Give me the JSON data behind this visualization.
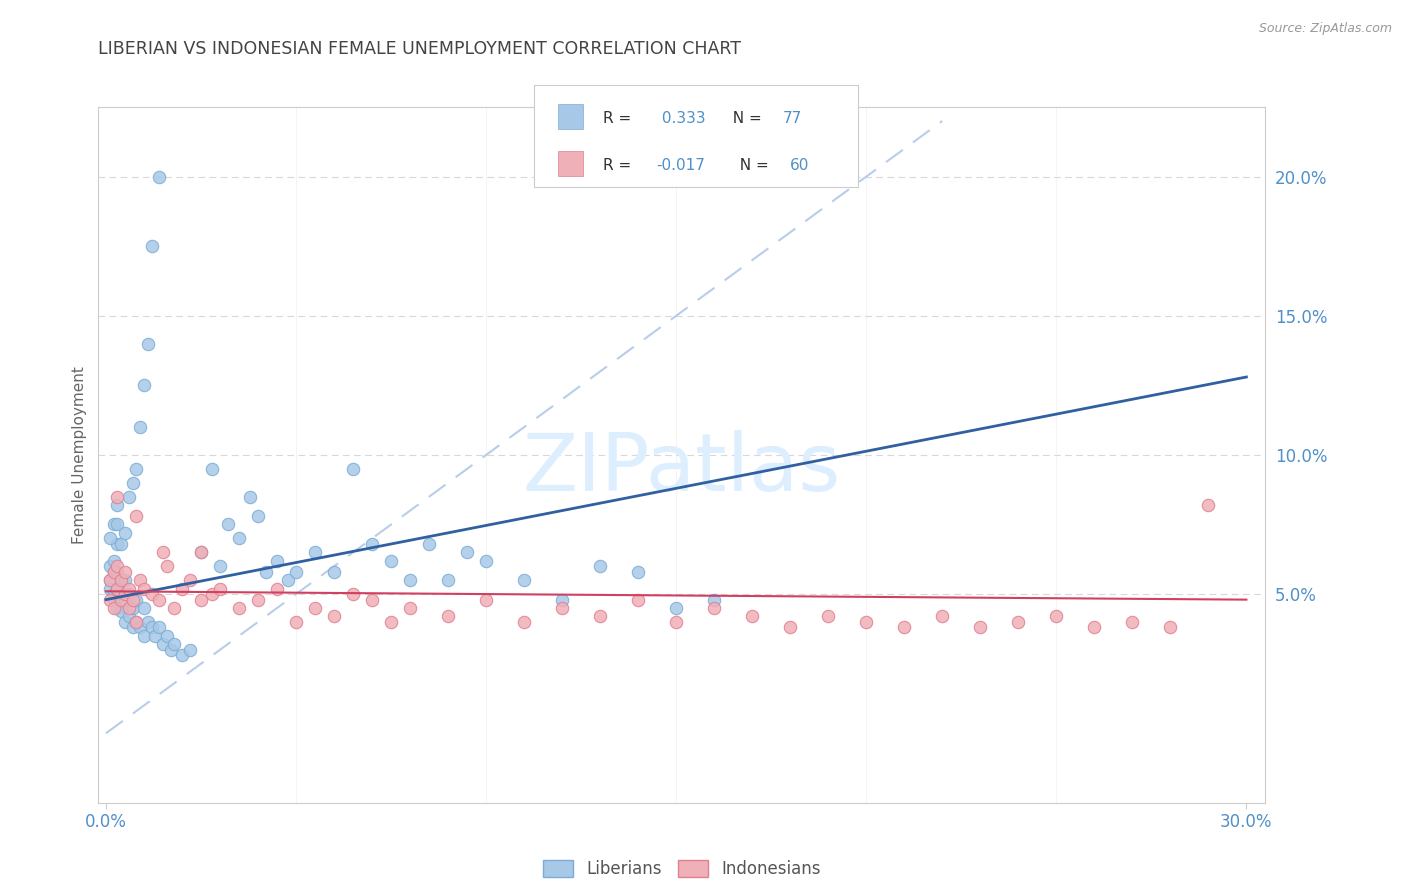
{
  "title": "LIBERIAN VS INDONESIAN FEMALE UNEMPLOYMENT CORRELATION CHART",
  "source_text": "Source: ZipAtlas.com",
  "ylabel": "Female Unemployment",
  "xlim": [
    -0.002,
    0.305
  ],
  "ylim": [
    -0.025,
    0.225
  ],
  "yticks": [
    0.05,
    0.1,
    0.15,
    0.2
  ],
  "ytick_labels": [
    "5.0%",
    "10.0%",
    "15.0%",
    "20.0%"
  ],
  "xtick_left_label": "0.0%",
  "xtick_right_label": "30.0%",
  "liberian_R": 0.333,
  "liberian_N": 77,
  "indonesian_R": -0.017,
  "indonesian_N": 60,
  "blue_color": "#a8c8e8",
  "pink_color": "#f0b0b8",
  "blue_edge_color": "#7badd4",
  "pink_edge_color": "#e08090",
  "blue_line_color": "#3060a0",
  "pink_line_color": "#d04060",
  "diag_line_color": "#b0c8e8",
  "title_color": "#444444",
  "axis_label_color": "#666666",
  "tick_color": "#5090c8",
  "grid_color": "#d8d8d8",
  "watermark_color": "#ddeeff",
  "border_color": "#cccccc",
  "lib_x": [
    0.001,
    0.001,
    0.001,
    0.002,
    0.002,
    0.002,
    0.002,
    0.003,
    0.003,
    0.003,
    0.003,
    0.004,
    0.004,
    0.004,
    0.005,
    0.005,
    0.005,
    0.006,
    0.006,
    0.007,
    0.007,
    0.008,
    0.008,
    0.009,
    0.01,
    0.01,
    0.011,
    0.012,
    0.013,
    0.014,
    0.015,
    0.016,
    0.017,
    0.018,
    0.02,
    0.022,
    0.025,
    0.028,
    0.03,
    0.032,
    0.035,
    0.038,
    0.04,
    0.042,
    0.045,
    0.048,
    0.05,
    0.055,
    0.06,
    0.065,
    0.07,
    0.075,
    0.08,
    0.085,
    0.09,
    0.095,
    0.1,
    0.11,
    0.12,
    0.13,
    0.14,
    0.15,
    0.16,
    0.001,
    0.002,
    0.003,
    0.003,
    0.004,
    0.005,
    0.006,
    0.007,
    0.008,
    0.009,
    0.01,
    0.011,
    0.012,
    0.014
  ],
  "lib_y": [
    0.055,
    0.052,
    0.06,
    0.048,
    0.05,
    0.058,
    0.062,
    0.045,
    0.052,
    0.058,
    0.068,
    0.044,
    0.05,
    0.055,
    0.04,
    0.048,
    0.055,
    0.042,
    0.05,
    0.038,
    0.045,
    0.04,
    0.048,
    0.038,
    0.035,
    0.045,
    0.04,
    0.038,
    0.035,
    0.038,
    0.032,
    0.035,
    0.03,
    0.032,
    0.028,
    0.03,
    0.065,
    0.095,
    0.06,
    0.075,
    0.07,
    0.085,
    0.078,
    0.058,
    0.062,
    0.055,
    0.058,
    0.065,
    0.058,
    0.095,
    0.068,
    0.062,
    0.055,
    0.068,
    0.055,
    0.065,
    0.062,
    0.055,
    0.048,
    0.06,
    0.058,
    0.045,
    0.048,
    0.07,
    0.075,
    0.075,
    0.082,
    0.068,
    0.072,
    0.085,
    0.09,
    0.095,
    0.11,
    0.125,
    0.14,
    0.175,
    0.2
  ],
  "ind_x": [
    0.001,
    0.001,
    0.002,
    0.002,
    0.003,
    0.003,
    0.004,
    0.004,
    0.005,
    0.005,
    0.006,
    0.006,
    0.007,
    0.008,
    0.009,
    0.01,
    0.012,
    0.014,
    0.016,
    0.018,
    0.02,
    0.022,
    0.025,
    0.028,
    0.03,
    0.035,
    0.04,
    0.045,
    0.05,
    0.055,
    0.06,
    0.065,
    0.07,
    0.075,
    0.08,
    0.09,
    0.1,
    0.11,
    0.12,
    0.13,
    0.14,
    0.15,
    0.16,
    0.17,
    0.18,
    0.19,
    0.2,
    0.21,
    0.22,
    0.23,
    0.24,
    0.25,
    0.26,
    0.27,
    0.28,
    0.29,
    0.003,
    0.008,
    0.015,
    0.025
  ],
  "ind_y": [
    0.055,
    0.048,
    0.058,
    0.045,
    0.052,
    0.06,
    0.048,
    0.055,
    0.05,
    0.058,
    0.045,
    0.052,
    0.048,
    0.04,
    0.055,
    0.052,
    0.05,
    0.048,
    0.06,
    0.045,
    0.052,
    0.055,
    0.048,
    0.05,
    0.052,
    0.045,
    0.048,
    0.052,
    0.04,
    0.045,
    0.042,
    0.05,
    0.048,
    0.04,
    0.045,
    0.042,
    0.048,
    0.04,
    0.045,
    0.042,
    0.048,
    0.04,
    0.045,
    0.042,
    0.038,
    0.042,
    0.04,
    0.038,
    0.042,
    0.038,
    0.04,
    0.042,
    0.038,
    0.04,
    0.038,
    0.082,
    0.085,
    0.078,
    0.065,
    0.065
  ],
  "lib_line_x": [
    0.0,
    0.3
  ],
  "lib_line_y": [
    0.048,
    0.128
  ],
  "ind_line_x": [
    0.0,
    0.3
  ],
  "ind_line_y": [
    0.051,
    0.048
  ],
  "diag_line_x": [
    0.0,
    0.22
  ],
  "diag_line_y": [
    0.0,
    0.22
  ]
}
